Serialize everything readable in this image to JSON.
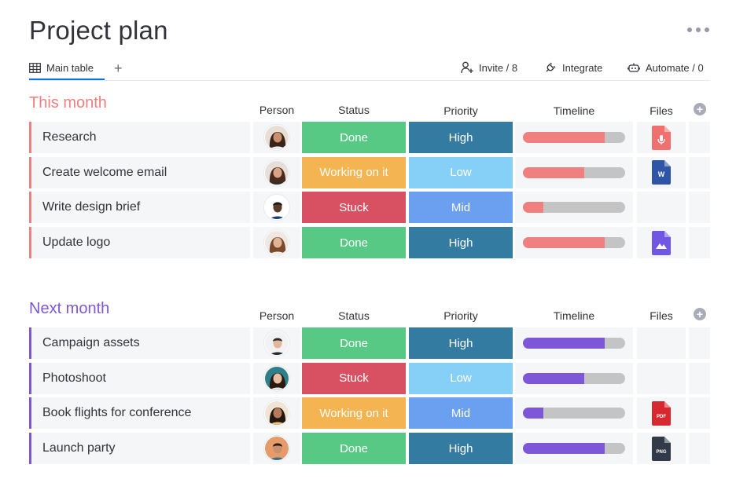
{
  "header": {
    "title": "Project plan",
    "tabs": [
      {
        "label": "Main table"
      }
    ],
    "add_tab_label": "+",
    "actions": {
      "invite": "Invite / 8",
      "integrate": "Integrate",
      "automate": "Automate / 0"
    }
  },
  "columns": {
    "person": "Person",
    "status": "Status",
    "priority": "Priority",
    "timeline": "Timeline",
    "files": "Files"
  },
  "colors": {
    "status": {
      "Done": "#57c985",
      "Working on it": "#f4b452",
      "Stuck": "#d75162"
    },
    "priority": {
      "High": "#337ba0",
      "Low": "#86cff7",
      "Mid": "#6b9fef"
    },
    "timeline_track": "#c4c4c4"
  },
  "groups": [
    {
      "title": "This month",
      "color": "#f07f7f",
      "rows": [
        {
          "item": "Research",
          "person": "avatar-woman-curly-hair",
          "status": "Done",
          "priority": "High",
          "timeline_progress": 0.8,
          "file": {
            "type": "audio",
            "icon": "audio-file-icon",
            "color": "#f07070",
            "label": ""
          }
        },
        {
          "item": "Create welcome email",
          "person": "avatar-woman-long-hair",
          "status": "Working on it",
          "priority": "Low",
          "timeline_progress": 0.6,
          "file": {
            "type": "word",
            "icon": "word-file-icon",
            "color": "#2f55a7",
            "label": "W"
          }
        },
        {
          "item": "Write design brief",
          "person": "avatar-man-beard",
          "status": "Stuck",
          "priority": "Mid",
          "timeline_progress": 0.2,
          "file": null
        },
        {
          "item": "Update logo",
          "person": "avatar-woman-smiling",
          "status": "Done",
          "priority": "High",
          "timeline_progress": 0.8,
          "file": {
            "type": "image",
            "icon": "image-file-icon",
            "color": "#6f57e3",
            "label": ""
          }
        }
      ]
    },
    {
      "title": "Next month",
      "color": "#7e56d8",
      "rows": [
        {
          "item": "Campaign assets",
          "person": "avatar-man-suit",
          "status": "Done",
          "priority": "High",
          "timeline_progress": 0.8,
          "file": null
        },
        {
          "item": "Photoshoot",
          "person": "avatar-woman-blonde",
          "status": "Stuck",
          "priority": "Low",
          "timeline_progress": 0.6,
          "file": null
        },
        {
          "item": "Book flights for conference",
          "person": "avatar-woman-curly-dark",
          "status": "Working on it",
          "priority": "Mid",
          "timeline_progress": 0.2,
          "file": {
            "type": "pdf",
            "icon": "pdf-file-icon",
            "color": "#d7282f",
            "label": "PDF"
          }
        },
        {
          "item": "Launch party",
          "person": "avatar-man-smiling",
          "status": "Done",
          "priority": "High",
          "timeline_progress": 0.8,
          "file": {
            "type": "png",
            "icon": "png-file-icon",
            "color": "#323a4a",
            "label": "PNG"
          }
        }
      ]
    }
  ]
}
